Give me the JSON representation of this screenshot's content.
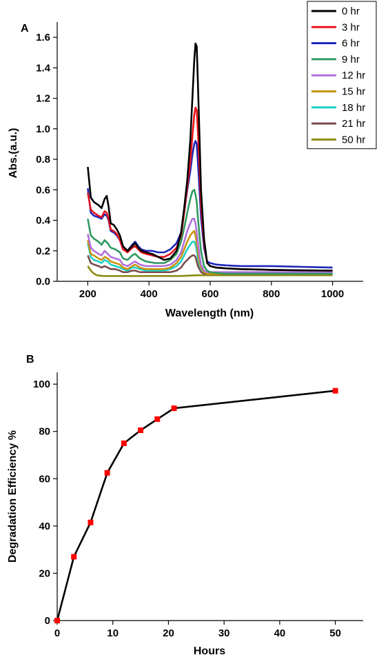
{
  "chart_data": [
    {
      "type": "line",
      "panel_label": "A",
      "xlabel": "Wavelength (nm)",
      "ylabel": "Abs.(a.u.)",
      "xlim": [
        100,
        1100
      ],
      "ylim": [
        0,
        1.7
      ],
      "xticks": [
        200,
        400,
        600,
        800,
        1000
      ],
      "yticks": [
        0.0,
        0.2,
        0.4,
        0.6,
        0.8,
        1.0,
        1.2,
        1.4,
        1.6
      ],
      "ytick_labels": [
        "0.0",
        "0.2",
        "0.4",
        "0.6",
        "0.8",
        "1.0",
        "1.2",
        "1.4",
        "1.6"
      ],
      "grid": false,
      "legend_position": "top-right",
      "series": [
        {
          "name": "0 hr",
          "color": "#000000",
          "x": [
            200,
            210,
            220,
            235,
            245,
            255,
            262,
            268,
            275,
            285,
            295,
            305,
            315,
            330,
            345,
            355,
            365,
            375,
            390,
            410,
            430,
            450,
            470,
            490,
            505,
            515,
            525,
            535,
            542,
            548,
            552,
            556,
            560,
            565,
            570,
            580,
            590,
            600,
            620,
            650,
            700,
            800,
            900,
            1000
          ],
          "y": [
            0.75,
            0.55,
            0.52,
            0.5,
            0.48,
            0.54,
            0.56,
            0.49,
            0.38,
            0.37,
            0.34,
            0.3,
            0.23,
            0.2,
            0.23,
            0.25,
            0.22,
            0.2,
            0.19,
            0.18,
            0.16,
            0.14,
            0.15,
            0.2,
            0.32,
            0.48,
            0.66,
            0.92,
            1.2,
            1.45,
            1.56,
            1.54,
            1.3,
            0.95,
            0.6,
            0.28,
            0.12,
            0.1,
            0.09,
            0.085,
            0.08,
            0.075,
            0.072,
            0.07
          ]
        },
        {
          "name": "3 hr",
          "color": "#e8131b",
          "x": [
            200,
            210,
            220,
            235,
            245,
            255,
            262,
            268,
            275,
            285,
            295,
            305,
            315,
            330,
            345,
            355,
            365,
            375,
            390,
            410,
            430,
            450,
            470,
            490,
            505,
            515,
            525,
            535,
            542,
            548,
            552,
            556,
            560,
            565,
            570,
            580,
            590,
            600,
            620,
            650,
            700,
            800,
            900,
            1000
          ],
          "y": [
            0.58,
            0.47,
            0.45,
            0.43,
            0.42,
            0.46,
            0.45,
            0.41,
            0.34,
            0.33,
            0.31,
            0.27,
            0.21,
            0.19,
            0.22,
            0.23,
            0.21,
            0.19,
            0.18,
            0.17,
            0.16,
            0.16,
            0.18,
            0.22,
            0.3,
            0.45,
            0.62,
            0.78,
            0.95,
            1.09,
            1.14,
            1.12,
            0.98,
            0.75,
            0.5,
            0.25,
            0.12,
            0.1,
            0.09,
            0.085,
            0.08,
            0.075,
            0.072,
            0.07
          ]
        },
        {
          "name": "6 hr",
          "color": "#1b25b8",
          "x": [
            200,
            210,
            220,
            235,
            245,
            255,
            262,
            268,
            275,
            285,
            295,
            305,
            315,
            330,
            345,
            355,
            365,
            375,
            390,
            410,
            430,
            450,
            470,
            490,
            505,
            515,
            525,
            535,
            542,
            548,
            552,
            556,
            560,
            565,
            570,
            580,
            590,
            600,
            620,
            650,
            700,
            800,
            900,
            1000
          ],
          "y": [
            0.61,
            0.45,
            0.43,
            0.42,
            0.41,
            0.44,
            0.43,
            0.4,
            0.33,
            0.32,
            0.3,
            0.27,
            0.21,
            0.2,
            0.24,
            0.26,
            0.23,
            0.21,
            0.2,
            0.2,
            0.19,
            0.19,
            0.21,
            0.25,
            0.32,
            0.45,
            0.6,
            0.72,
            0.83,
            0.9,
            0.92,
            0.9,
            0.78,
            0.6,
            0.42,
            0.22,
            0.13,
            0.12,
            0.11,
            0.105,
            0.1,
            0.1,
            0.095,
            0.09
          ]
        },
        {
          "name": "9 hr",
          "color": "#2f9960",
          "x": [
            200,
            210,
            220,
            235,
            245,
            255,
            265,
            275,
            290,
            305,
            315,
            330,
            345,
            355,
            370,
            390,
            420,
            450,
            470,
            490,
            505,
            515,
            525,
            535,
            542,
            548,
            552,
            556,
            560,
            565,
            570,
            580,
            590,
            600,
            620,
            650,
            700,
            800,
            900,
            1000
          ],
          "y": [
            0.41,
            0.3,
            0.28,
            0.26,
            0.24,
            0.27,
            0.25,
            0.22,
            0.21,
            0.19,
            0.15,
            0.14,
            0.17,
            0.18,
            0.15,
            0.13,
            0.12,
            0.12,
            0.14,
            0.18,
            0.26,
            0.35,
            0.45,
            0.54,
            0.59,
            0.6,
            0.57,
            0.52,
            0.42,
            0.3,
            0.2,
            0.1,
            0.07,
            0.06,
            0.055,
            0.05,
            0.05,
            0.05,
            0.05,
            0.05
          ]
        },
        {
          "name": "12 hr",
          "color": "#b06fdb",
          "x": [
            200,
            210,
            220,
            235,
            245,
            255,
            265,
            275,
            290,
            305,
            315,
            330,
            345,
            355,
            370,
            390,
            420,
            450,
            470,
            490,
            505,
            515,
            525,
            535,
            542,
            548,
            552,
            556,
            560,
            565,
            570,
            580,
            590,
            600,
            620,
            650,
            700,
            800,
            900,
            1000
          ],
          "y": [
            0.31,
            0.22,
            0.2,
            0.18,
            0.17,
            0.2,
            0.18,
            0.16,
            0.15,
            0.14,
            0.11,
            0.1,
            0.12,
            0.13,
            0.11,
            0.1,
            0.1,
            0.1,
            0.11,
            0.14,
            0.19,
            0.26,
            0.33,
            0.38,
            0.41,
            0.41,
            0.38,
            0.32,
            0.25,
            0.17,
            0.11,
            0.07,
            0.06,
            0.06,
            0.06,
            0.06,
            0.06,
            0.06,
            0.06,
            0.06
          ]
        },
        {
          "name": "15 hr",
          "color": "#c8940f",
          "x": [
            200,
            210,
            220,
            235,
            245,
            255,
            265,
            275,
            290,
            305,
            315,
            330,
            345,
            355,
            370,
            390,
            420,
            450,
            470,
            490,
            505,
            515,
            525,
            535,
            542,
            548,
            552,
            556,
            560,
            565,
            570,
            580,
            590,
            600,
            620,
            650,
            700,
            800,
            900,
            1000
          ],
          "y": [
            0.27,
            0.18,
            0.17,
            0.15,
            0.14,
            0.16,
            0.15,
            0.13,
            0.12,
            0.11,
            0.09,
            0.08,
            0.1,
            0.11,
            0.09,
            0.08,
            0.08,
            0.08,
            0.09,
            0.12,
            0.16,
            0.21,
            0.26,
            0.3,
            0.32,
            0.33,
            0.3,
            0.25,
            0.19,
            0.13,
            0.09,
            0.06,
            0.05,
            0.05,
            0.05,
            0.05,
            0.05,
            0.05,
            0.05,
            0.05
          ]
        },
        {
          "name": "18 hr",
          "color": "#1fd0c8",
          "x": [
            200,
            210,
            220,
            235,
            245,
            255,
            265,
            275,
            290,
            305,
            315,
            330,
            345,
            355,
            370,
            390,
            420,
            450,
            470,
            490,
            505,
            515,
            525,
            535,
            542,
            548,
            552,
            556,
            560,
            565,
            570,
            580,
            590,
            600,
            620,
            650,
            700,
            800,
            900,
            1000
          ],
          "y": [
            0.25,
            0.16,
            0.14,
            0.13,
            0.12,
            0.14,
            0.13,
            0.11,
            0.1,
            0.09,
            0.08,
            0.07,
            0.09,
            0.09,
            0.08,
            0.07,
            0.07,
            0.07,
            0.08,
            0.1,
            0.13,
            0.17,
            0.21,
            0.24,
            0.26,
            0.26,
            0.24,
            0.2,
            0.15,
            0.11,
            0.08,
            0.06,
            0.055,
            0.055,
            0.055,
            0.055,
            0.055,
            0.055,
            0.055,
            0.055
          ]
        },
        {
          "name": "21 hr",
          "color": "#7a4a4a",
          "x": [
            200,
            210,
            220,
            235,
            245,
            255,
            265,
            275,
            290,
            305,
            315,
            330,
            345,
            355,
            370,
            390,
            420,
            450,
            470,
            490,
            505,
            515,
            525,
            535,
            542,
            548,
            552,
            556,
            560,
            565,
            570,
            580,
            590,
            600,
            620,
            650,
            700,
            800,
            900,
            1000
          ],
          "y": [
            0.17,
            0.12,
            0.11,
            0.1,
            0.09,
            0.1,
            0.09,
            0.08,
            0.08,
            0.07,
            0.06,
            0.06,
            0.07,
            0.07,
            0.06,
            0.06,
            0.06,
            0.06,
            0.06,
            0.07,
            0.09,
            0.12,
            0.14,
            0.16,
            0.17,
            0.17,
            0.16,
            0.13,
            0.1,
            0.08,
            0.06,
            0.05,
            0.05,
            0.05,
            0.05,
            0.05,
            0.05,
            0.05,
            0.05,
            0.05
          ]
        },
        {
          "name": "50 hr",
          "color": "#8c8a12",
          "x": [
            200,
            210,
            220,
            230,
            250,
            300,
            400,
            500,
            560,
            600,
            700,
            800,
            900,
            1000
          ],
          "y": [
            0.1,
            0.07,
            0.05,
            0.04,
            0.035,
            0.035,
            0.035,
            0.035,
            0.04,
            0.04,
            0.04,
            0.04,
            0.04,
            0.04
          ]
        }
      ]
    },
    {
      "type": "line",
      "panel_label": "B",
      "xlabel": "Hours",
      "ylabel": "Degradation Efficiency %",
      "xlim": [
        0,
        55
      ],
      "ylim": [
        0,
        105
      ],
      "xticks": [
        0,
        10,
        20,
        30,
        40,
        50
      ],
      "yticks": [
        0,
        20,
        40,
        60,
        80,
        100
      ],
      "grid": false,
      "line_color": "#000000",
      "marker_color": "#ff0000",
      "x": [
        0,
        3,
        6,
        9,
        12,
        15,
        18,
        21,
        50
      ],
      "y": [
        0,
        27,
        41.5,
        62.5,
        75,
        80.5,
        85.2,
        89.8,
        97.2
      ]
    }
  ]
}
